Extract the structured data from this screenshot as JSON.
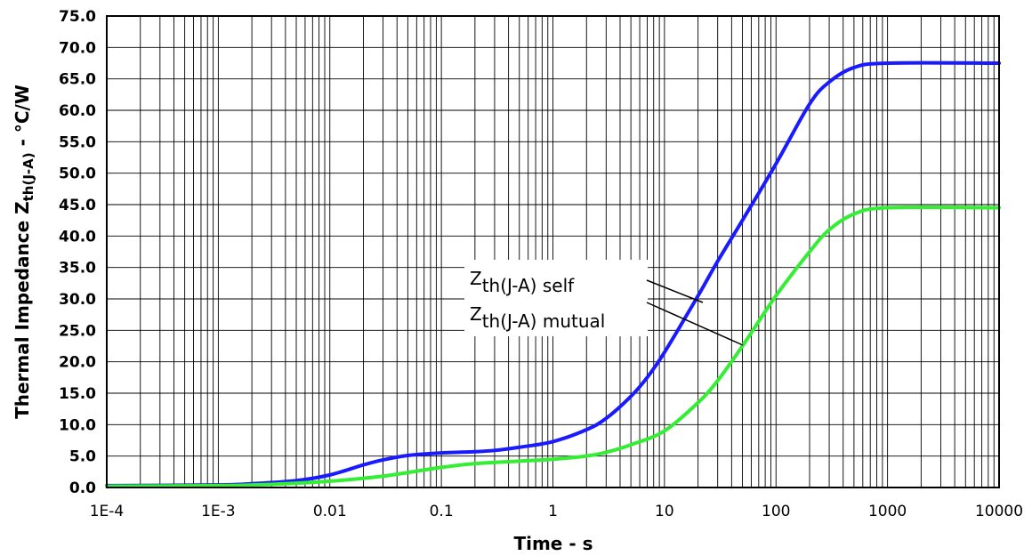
{
  "chart_data": {
    "type": "line",
    "xlabel": "Time - s",
    "ylabel": {
      "main": "Thermal Impedance Z",
      "subscript": "th(J-A)",
      "suffix": " - °C/W"
    },
    "x_scale": "log",
    "xlim": [
      0.0001,
      10000
    ],
    "ylim": [
      0,
      75
    ],
    "grid": true,
    "x_tick_labels": [
      "1E-4",
      "1E-3",
      "0.01",
      "0.1",
      "1",
      "10",
      "100",
      "1000",
      "10000"
    ],
    "y_tick_labels": [
      "0.0",
      "5.0",
      "10.0",
      "15.0",
      "20.0",
      "25.0",
      "30.0",
      "35.0",
      "40.0",
      "45.0",
      "50.0",
      "55.0",
      "60.0",
      "65.0",
      "70.0",
      "75.0"
    ],
    "series": [
      {
        "name": "Z th(J-A) self",
        "label_main": "Z",
        "label_sub": "th(J-A)",
        "label_suffix": " self",
        "color": "#1a1aff",
        "x": [
          0.0001,
          0.001,
          0.002,
          0.005,
          0.01,
          0.02,
          0.03,
          0.05,
          0.1,
          0.2,
          0.3,
          0.5,
          1,
          2,
          3,
          5,
          7,
          10,
          20,
          30,
          50,
          100,
          200,
          300,
          500,
          1000,
          10000
        ],
        "y": [
          0.3,
          0.4,
          0.6,
          1.1,
          2.0,
          3.6,
          4.4,
          5.1,
          5.5,
          5.7,
          5.9,
          6.4,
          7.3,
          9.2,
          11.0,
          14.5,
          17.5,
          21.5,
          30.5,
          36.0,
          42.5,
          51.5,
          61.0,
          64.5,
          66.8,
          67.5,
          67.5
        ]
      },
      {
        "name": "Z th(J-A) mutual",
        "label_main": "Z",
        "label_sub": "th(J-A)",
        "label_suffix": " mutual",
        "color": "#33ee33",
        "x": [
          0.0001,
          0.001,
          0.003,
          0.01,
          0.03,
          0.1,
          0.2,
          0.5,
          1,
          2,
          3,
          5,
          10,
          20,
          30,
          50,
          100,
          200,
          300,
          500,
          1000,
          10000
        ],
        "y": [
          0.2,
          0.3,
          0.5,
          1.0,
          1.8,
          3.2,
          3.8,
          4.2,
          4.5,
          5.0,
          5.6,
          6.8,
          9.0,
          13.5,
          17.0,
          22.5,
          30.5,
          37.5,
          41.0,
          43.5,
          44.5,
          44.5
        ]
      }
    ],
    "legend": "center, callout labels with leader lines"
  }
}
